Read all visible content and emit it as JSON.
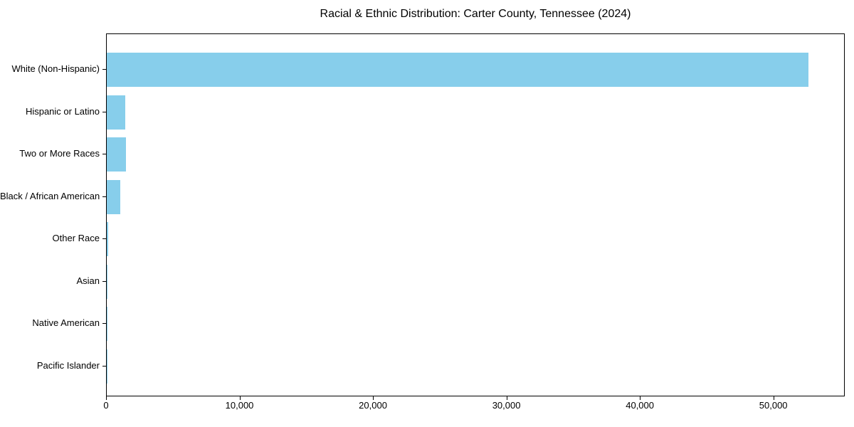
{
  "title": "Racial & Ethnic Distribution: Carter County, Tennessee (2024)",
  "colors": {
    "bar": "#87CEEB",
    "axis": "#000000",
    "background": "#FFFFFF",
    "text": "#000000"
  },
  "chart_data": {
    "type": "bar",
    "orientation": "horizontal",
    "title": "Racial & Ethnic Distribution: Carter County, Tennessee (2024)",
    "categories": [
      "White (Non-Hispanic)",
      "Hispanic or Latino",
      "Two or More Races",
      "Black / African American",
      "Other Race",
      "Asian",
      "Native American",
      "Pacific Islander"
    ],
    "values": [
      52600,
      1400,
      1450,
      1000,
      80,
      60,
      40,
      15
    ],
    "xlabel": "",
    "ylabel": "",
    "xlim": [
      0,
      55350
    ],
    "xticks": [
      0,
      10000,
      20000,
      30000,
      40000,
      50000
    ],
    "xtick_labels": [
      "0",
      "10,000",
      "20,000",
      "30,000",
      "40,000",
      "50,000"
    ],
    "bar_color": "#87CEEB",
    "grid": false,
    "legend": null,
    "sort_order": "descending"
  }
}
